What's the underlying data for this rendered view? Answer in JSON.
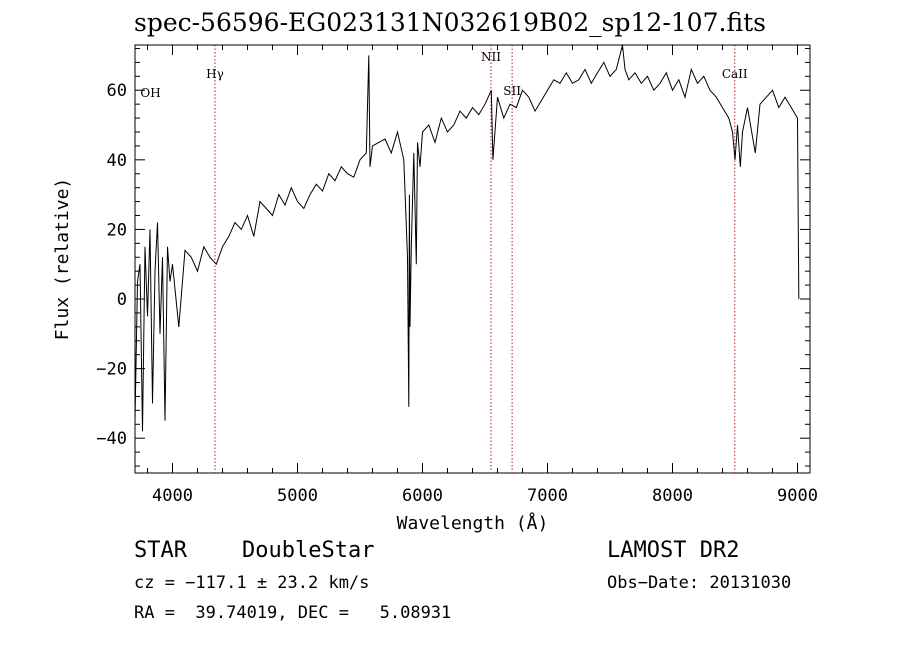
{
  "chart_data": {
    "type": "line",
    "title": "spec-56596-EG023131N032619B02_sp12-107.fits",
    "xlabel": "Wavelength (Å)",
    "ylabel": "Flux (relative)",
    "xlim": [
      3700,
      9100
    ],
    "ylim": [
      -50,
      73
    ],
    "xticks": [
      4000,
      5000,
      6000,
      7000,
      8000,
      9000
    ],
    "yticks": [
      -40,
      -20,
      0,
      20,
      40,
      60
    ],
    "x_tick_labels": [
      "4000",
      "5000",
      "6000",
      "7000",
      "8000",
      "9000"
    ],
    "y_tick_labels": [
      "-40",
      "-20",
      "0",
      "20",
      "40",
      "60"
    ],
    "grid": false,
    "line_color": "#000000",
    "marker_color": "#b22222",
    "lines": [
      {
        "label": "OH",
        "x": 3727
      },
      {
        "label": "Hγ",
        "x": 4340
      },
      {
        "label": "NII",
        "x": 6548
      },
      {
        "label": "SII",
        "x": 6717
      },
      {
        "label": "CaII",
        "x": 8498
      }
    ],
    "series": [
      {
        "x": [
          3700,
          3720,
          3740,
          3760,
          3780,
          3800,
          3820,
          3840,
          3860,
          3880,
          3900,
          3920,
          3940,
          3960,
          3980,
          4000,
          4050,
          4100,
          4150,
          4200,
          4250,
          4300,
          4350,
          4400,
          4450,
          4500,
          4550,
          4600,
          4650,
          4700,
          4750,
          4800,
          4850,
          4900,
          4950,
          5000,
          5050,
          5100,
          5150,
          5200,
          5250,
          5300,
          5350,
          5400,
          5450,
          5500,
          5550,
          5570,
          5580,
          5600,
          5650,
          5700,
          5750,
          5800,
          5850,
          5880,
          5890,
          5895,
          5900,
          5910,
          5930,
          5950,
          5960,
          5980,
          6000,
          6050,
          6100,
          6150,
          6200,
          6250,
          6300,
          6350,
          6400,
          6450,
          6500,
          6550,
          6563,
          6600,
          6650,
          6700,
          6750,
          6800,
          6850,
          6900,
          6950,
          7000,
          7050,
          7100,
          7150,
          7200,
          7250,
          7300,
          7350,
          7400,
          7450,
          7500,
          7550,
          7600,
          7620,
          7650,
          7700,
          7750,
          7800,
          7850,
          7900,
          7950,
          8000,
          8050,
          8100,
          8150,
          8200,
          8250,
          8300,
          8350,
          8400,
          8450,
          8480,
          8500,
          8520,
          8542,
          8560,
          8600,
          8662,
          8700,
          8750,
          8800,
          8850,
          8900,
          8950,
          9000,
          9010
        ],
        "y": [
          -35,
          5,
          10,
          -38,
          15,
          -5,
          20,
          -30,
          8,
          22,
          -10,
          12,
          -35,
          15,
          5,
          10,
          -8,
          14,
          12,
          8,
          15,
          12,
          10,
          15,
          18,
          22,
          20,
          24,
          18,
          28,
          26,
          24,
          30,
          27,
          32,
          28,
          26,
          30,
          33,
          31,
          36,
          34,
          38,
          36,
          35,
          40,
          42,
          70,
          38,
          44,
          45,
          46,
          42,
          48,
          40,
          12,
          -31,
          30,
          -8,
          15,
          42,
          10,
          45,
          38,
          48,
          50,
          45,
          52,
          48,
          50,
          54,
          52,
          55,
          53,
          56,
          60,
          40,
          58,
          52,
          56,
          55,
          60,
          58,
          54,
          57,
          60,
          63,
          62,
          65,
          62,
          63,
          66,
          62,
          65,
          68,
          64,
          66,
          73,
          66,
          63,
          65,
          62,
          64,
          60,
          62,
          65,
          60,
          63,
          58,
          66,
          62,
          64,
          60,
          58,
          55,
          52,
          48,
          40,
          50,
          38,
          48,
          55,
          42,
          56,
          58,
          60,
          55,
          58,
          55,
          52,
          0
        ]
      }
    ]
  },
  "footer": {
    "class": "STAR",
    "subclass": "DoubleStar",
    "survey": "LAMOST DR2",
    "cz": "cz = −117.1 ± 23.2 km/s",
    "obs_date": "Obs−Date: 20131030",
    "coords": "RA =  39.74019, DEC =   5.08931"
  }
}
